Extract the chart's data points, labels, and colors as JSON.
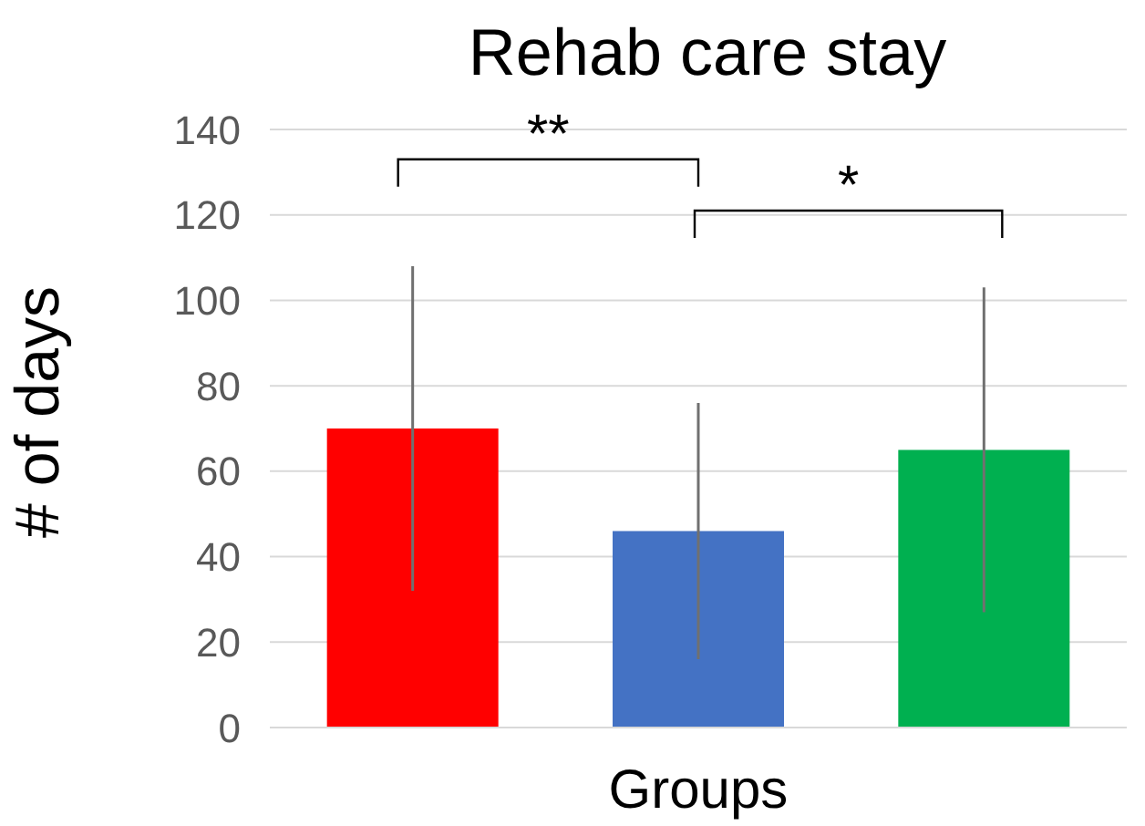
{
  "chart_data": {
    "type": "bar",
    "title": "Rehab care stay",
    "xlabel": "Groups",
    "ylabel": "# of days",
    "categories": [
      null,
      null,
      null
    ],
    "values": [
      70,
      46,
      65
    ],
    "colors": [
      "#ff0000",
      "#4472c4",
      "#00b050"
    ],
    "errors": [
      38,
      30,
      38
    ],
    "ylim": [
      0,
      140
    ],
    "yticks": [
      0,
      20,
      40,
      60,
      80,
      100,
      120,
      140
    ],
    "grid": "y",
    "annotations": [
      "**",
      "*"
    ]
  }
}
